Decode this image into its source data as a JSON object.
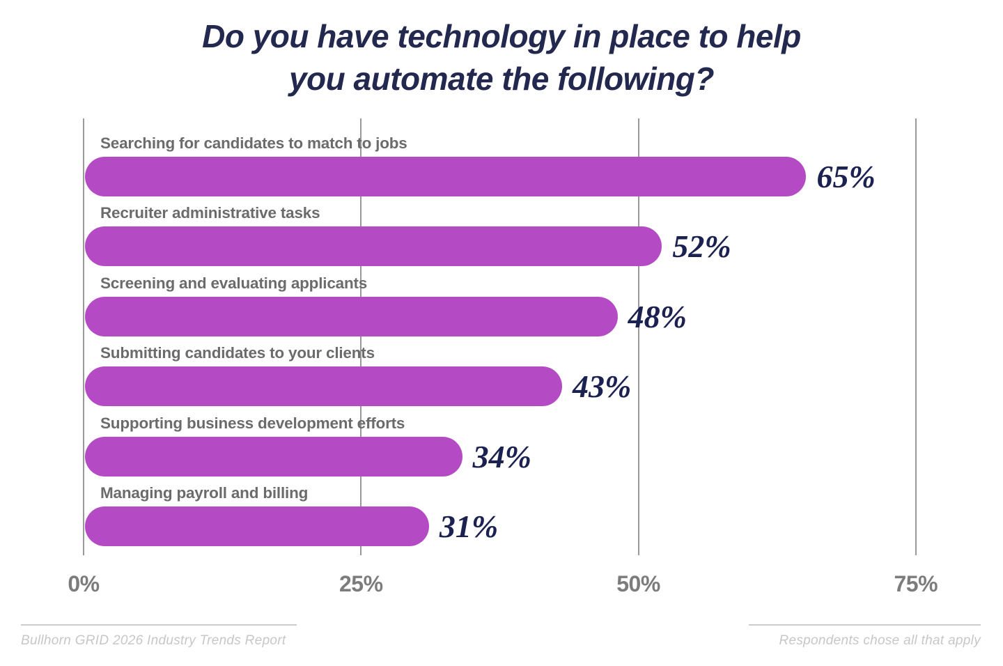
{
  "title": {
    "line1": "Do you have technology in place to help",
    "line2": "you automate the following?"
  },
  "chart_data": {
    "type": "bar",
    "orientation": "horizontal",
    "title": "Do you have technology in place to help you automate the following?",
    "categories": [
      "Searching for candidates to match to jobs",
      "Recruiter administrative tasks",
      "Screening and evaluating applicants",
      "Submitting candidates to your clients",
      "Supporting business development efforts",
      "Managing payroll and billing"
    ],
    "values": [
      65,
      52,
      48,
      43,
      34,
      31
    ],
    "value_labels": [
      "65%",
      "52%",
      "48%",
      "43%",
      "34%",
      "31%"
    ],
    "x_ticks": [
      "0%",
      "25%",
      "50%",
      "75%"
    ],
    "x_tick_values": [
      0,
      25,
      50,
      75
    ],
    "xlim": [
      0,
      80
    ],
    "xlabel": "",
    "ylabel": "",
    "grid": "vertical",
    "legend": "none",
    "bar_color": "#b44ac4"
  },
  "footer": {
    "left": "Bullhorn GRID 2026 Industry Trends Report",
    "right": "Respondents chose all that apply"
  },
  "colors": {
    "c_bar": "#b44ac4",
    "c_title": "#22284e",
    "c_value": "#1b2150",
    "c_label": "#6b6b6b",
    "c_tick": "#7c7c7c",
    "c_grid": "#999999",
    "c_footer_line": "#cccccc",
    "c_footer_text": "#c7c7c7"
  }
}
